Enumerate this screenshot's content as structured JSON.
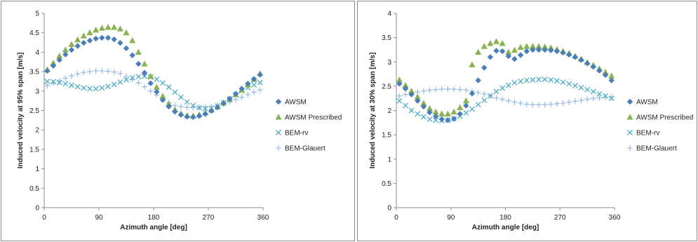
{
  "colors": {
    "awsm": "#4a7ebb",
    "awsm_prescribed": "#8db350",
    "bem_rv": "#4bacc6",
    "bem_glauert": "#8eb4e3",
    "axis": "#8c8c8c",
    "frame": "#8c8c8c"
  },
  "chart_data": [
    {
      "type": "scatter",
      "xlabel": "Azimuth angle [deg]",
      "ylabel": "Induced velocity at 95% span [m/s]",
      "xlim": [
        0,
        360
      ],
      "ylim": [
        0,
        5
      ],
      "xticks": [
        "0",
        "90",
        "180",
        "270",
        "360"
      ],
      "yticks": [
        "0",
        "0.5",
        "1",
        "1.5",
        "2",
        "2.5",
        "3",
        "3.5",
        "4",
        "4.5",
        "5"
      ],
      "grid": false,
      "legend_position": "right",
      "series": [
        {
          "name": "AWSM",
          "marker": "diamond",
          "x": [
            5,
            15,
            25,
            35,
            45,
            55,
            65,
            75,
            85,
            95,
            105,
            115,
            125,
            135,
            145,
            155,
            165,
            175,
            185,
            195,
            205,
            215,
            225,
            235,
            245,
            255,
            265,
            275,
            285,
            295,
            305,
            315,
            325,
            335,
            345,
            355
          ],
          "y": [
            3.52,
            3.65,
            3.8,
            3.94,
            4.06,
            4.16,
            4.24,
            4.3,
            4.35,
            4.37,
            4.37,
            4.33,
            4.24,
            4.1,
            3.92,
            3.7,
            3.47,
            3.2,
            2.98,
            2.77,
            2.6,
            2.47,
            2.39,
            2.34,
            2.33,
            2.36,
            2.41,
            2.49,
            2.58,
            2.69,
            2.8,
            2.93,
            3.06,
            3.19,
            3.31,
            3.42
          ]
        },
        {
          "name": "AWSM Prescribed",
          "marker": "triangle",
          "x": [
            5,
            15,
            25,
            35,
            45,
            55,
            65,
            75,
            85,
            95,
            105,
            115,
            125,
            135,
            145,
            155,
            165,
            175,
            185,
            195,
            205,
            215,
            225,
            235,
            245,
            255,
            265,
            275,
            285,
            295,
            305,
            315,
            325,
            335,
            345,
            355
          ],
          "y": [
            3.55,
            3.72,
            3.9,
            4.06,
            4.2,
            4.32,
            4.42,
            4.5,
            4.57,
            4.62,
            4.64,
            4.64,
            4.6,
            4.5,
            4.3,
            4.0,
            3.7,
            3.38,
            3.1,
            2.87,
            2.67,
            2.52,
            2.42,
            2.37,
            2.36,
            2.39,
            2.44,
            2.51,
            2.59,
            2.69,
            2.79,
            2.91,
            3.03,
            3.16,
            3.3,
            3.45
          ]
        },
        {
          "name": "BEM-rv",
          "marker": "x",
          "x": [
            5,
            15,
            25,
            35,
            45,
            55,
            65,
            75,
            85,
            95,
            105,
            115,
            125,
            135,
            145,
            155,
            165,
            175,
            185,
            195,
            205,
            215,
            225,
            235,
            245,
            255,
            265,
            275,
            285,
            295,
            305,
            315,
            325,
            335,
            345,
            355
          ],
          "y": [
            3.25,
            3.24,
            3.22,
            3.19,
            3.15,
            3.11,
            3.08,
            3.06,
            3.06,
            3.08,
            3.12,
            3.17,
            3.23,
            3.29,
            3.34,
            3.37,
            3.38,
            3.36,
            3.3,
            3.21,
            3.1,
            2.97,
            2.84,
            2.72,
            2.63,
            2.57,
            2.55,
            2.56,
            2.62,
            2.7,
            2.8,
            2.9,
            3.0,
            3.09,
            3.16,
            3.22
          ]
        },
        {
          "name": "BEM-Glauert",
          "marker": "plus",
          "x": [
            5,
            15,
            25,
            35,
            45,
            55,
            65,
            75,
            85,
            95,
            105,
            115,
            125,
            135,
            145,
            155,
            165,
            175,
            185,
            195,
            205,
            215,
            225,
            235,
            245,
            255,
            265,
            275,
            285,
            295,
            305,
            315,
            325,
            335,
            345,
            355
          ],
          "y": [
            3.14,
            3.2,
            3.26,
            3.33,
            3.39,
            3.44,
            3.48,
            3.5,
            3.52,
            3.52,
            3.51,
            3.49,
            3.45,
            3.38,
            3.3,
            3.21,
            3.11,
            3.0,
            2.9,
            2.8,
            2.7,
            2.63,
            2.6,
            2.58,
            2.58,
            2.58,
            2.59,
            2.6,
            2.63,
            2.67,
            2.72,
            2.78,
            2.84,
            2.91,
            2.97,
            3.03
          ]
        }
      ]
    },
    {
      "type": "scatter",
      "xlabel": "Azimuth angle [deg]",
      "ylabel": "Induced velocity at 30% span [m/s]",
      "xlim": [
        0,
        360
      ],
      "ylim": [
        0,
        4
      ],
      "xticks": [
        "0",
        "90",
        "180",
        "270",
        "360"
      ],
      "yticks": [
        "0",
        "0.5",
        "1",
        "1.5",
        "2",
        "2.5",
        "3",
        "3.5",
        "4"
      ],
      "grid": false,
      "legend_position": "right",
      "series": [
        {
          "name": "AWSM",
          "marker": "diamond",
          "x": [
            5,
            15,
            25,
            35,
            45,
            55,
            65,
            75,
            85,
            95,
            105,
            115,
            125,
            135,
            145,
            155,
            165,
            175,
            185,
            195,
            205,
            215,
            225,
            235,
            245,
            255,
            265,
            275,
            285,
            295,
            305,
            315,
            325,
            335,
            345,
            355
          ],
          "y": [
            2.55,
            2.45,
            2.33,
            2.2,
            2.08,
            1.96,
            1.88,
            1.82,
            1.8,
            1.83,
            1.93,
            2.1,
            2.35,
            2.62,
            2.88,
            3.1,
            3.23,
            3.22,
            3.12,
            3.06,
            3.14,
            3.22,
            3.25,
            3.25,
            3.25,
            3.24,
            3.22,
            3.19,
            3.15,
            3.1,
            3.04,
            2.97,
            2.9,
            2.82,
            2.73,
            2.62
          ]
        },
        {
          "name": "AWSM Prescribed",
          "marker": "triangle",
          "x": [
            5,
            15,
            25,
            35,
            45,
            55,
            65,
            75,
            85,
            95,
            105,
            115,
            125,
            135,
            145,
            155,
            165,
            175,
            185,
            195,
            205,
            215,
            225,
            235,
            245,
            255,
            265,
            275,
            285,
            295,
            305,
            315,
            325,
            335,
            345,
            355
          ],
          "y": [
            2.63,
            2.52,
            2.4,
            2.28,
            2.15,
            2.04,
            1.97,
            1.93,
            1.93,
            1.97,
            2.06,
            2.2,
            2.94,
            3.2,
            3.32,
            3.38,
            3.42,
            3.38,
            3.2,
            3.24,
            3.3,
            3.32,
            3.32,
            3.32,
            3.31,
            3.29,
            3.26,
            3.22,
            3.18,
            3.12,
            3.06,
            2.99,
            2.93,
            2.86,
            2.79,
            2.71
          ]
        },
        {
          "name": "BEM-rv",
          "marker": "x",
          "x": [
            5,
            15,
            25,
            35,
            45,
            55,
            65,
            75,
            85,
            95,
            105,
            115,
            125,
            135,
            145,
            155,
            165,
            175,
            185,
            195,
            205,
            215,
            225,
            235,
            245,
            255,
            265,
            275,
            285,
            295,
            305,
            315,
            325,
            335,
            345,
            355
          ],
          "y": [
            2.2,
            2.1,
            2.0,
            1.93,
            1.87,
            1.82,
            1.8,
            1.79,
            1.8,
            1.83,
            1.88,
            1.95,
            2.03,
            2.12,
            2.21,
            2.3,
            2.39,
            2.46,
            2.52,
            2.57,
            2.6,
            2.62,
            2.63,
            2.64,
            2.64,
            2.63,
            2.61,
            2.58,
            2.55,
            2.51,
            2.47,
            2.43,
            2.39,
            2.34,
            2.3,
            2.25
          ]
        },
        {
          "name": "BEM-Glauert",
          "marker": "plus",
          "x": [
            5,
            15,
            25,
            35,
            45,
            55,
            65,
            75,
            85,
            95,
            105,
            115,
            125,
            135,
            145,
            155,
            165,
            175,
            185,
            195,
            205,
            215,
            225,
            235,
            245,
            255,
            265,
            275,
            285,
            295,
            305,
            315,
            325,
            335,
            345,
            355
          ],
          "y": [
            2.3,
            2.33,
            2.36,
            2.38,
            2.4,
            2.42,
            2.43,
            2.44,
            2.44,
            2.44,
            2.43,
            2.42,
            2.4,
            2.37,
            2.34,
            2.3,
            2.26,
            2.23,
            2.2,
            2.17,
            2.15,
            2.13,
            2.12,
            2.12,
            2.12,
            2.13,
            2.14,
            2.15,
            2.17,
            2.19,
            2.21,
            2.23,
            2.25,
            2.26,
            2.27,
            2.28
          ]
        }
      ]
    }
  ]
}
